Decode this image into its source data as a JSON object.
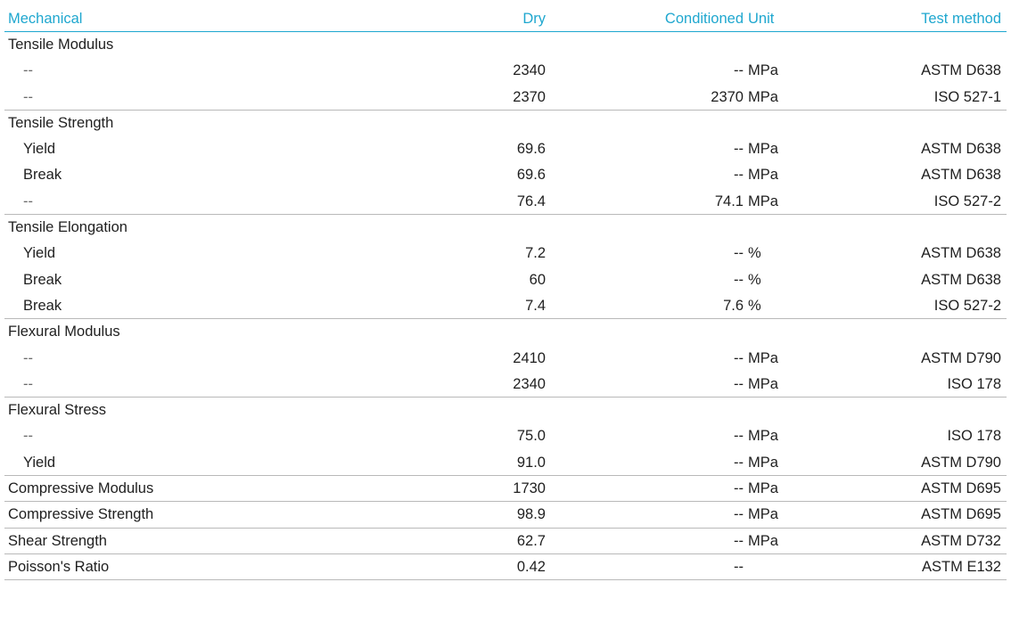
{
  "header": {
    "section": "Mechanical",
    "dry": "Dry",
    "conditioned": "Conditioned",
    "unit": "Unit",
    "test_method": "Test method"
  },
  "rows": [
    {
      "kind": "group",
      "property": "Tensile Modulus",
      "dry": "",
      "cond": "",
      "unit": "",
      "method": "",
      "divider": false
    },
    {
      "kind": "sub",
      "property": "--",
      "dry": "2340",
      "cond": "--",
      "unit": "MPa",
      "method": "ASTM D638",
      "divider": false
    },
    {
      "kind": "sub",
      "property": "--",
      "dry": "2370",
      "cond": "2370",
      "unit": "MPa",
      "method": "ISO 527-1",
      "divider": true
    },
    {
      "kind": "group",
      "property": "Tensile Strength",
      "dry": "",
      "cond": "",
      "unit": "",
      "method": "",
      "divider": false
    },
    {
      "kind": "sub",
      "property": "Yield",
      "dry": "69.6",
      "cond": "--",
      "unit": "MPa",
      "method": "ASTM D638",
      "divider": false
    },
    {
      "kind": "sub",
      "property": "Break",
      "dry": "69.6",
      "cond": "--",
      "unit": "MPa",
      "method": "ASTM D638",
      "divider": false
    },
    {
      "kind": "sub",
      "property": "--",
      "dry": "76.4",
      "cond": "74.1",
      "unit": "MPa",
      "method": "ISO 527-2",
      "divider": true
    },
    {
      "kind": "group",
      "property": "Tensile Elongation",
      "dry": "",
      "cond": "",
      "unit": "",
      "method": "",
      "divider": false
    },
    {
      "kind": "sub",
      "property": "Yield",
      "dry": "7.2",
      "cond": "--",
      "unit": "%",
      "method": "ASTM D638",
      "divider": false
    },
    {
      "kind": "sub",
      "property": "Break",
      "dry": "60",
      "cond": "--",
      "unit": "%",
      "method": "ASTM D638",
      "divider": false
    },
    {
      "kind": "sub",
      "property": "Break",
      "dry": "7.4",
      "cond": "7.6",
      "unit": "%",
      "method": "ISO 527-2",
      "divider": true
    },
    {
      "kind": "group",
      "property": "Flexural Modulus",
      "dry": "",
      "cond": "",
      "unit": "",
      "method": "",
      "divider": false
    },
    {
      "kind": "sub",
      "property": "--",
      "dry": "2410",
      "cond": "--",
      "unit": "MPa",
      "method": "ASTM D790",
      "divider": false
    },
    {
      "kind": "sub",
      "property": "--",
      "dry": "2340",
      "cond": "--",
      "unit": "MPa",
      "method": "ISO 178",
      "divider": true
    },
    {
      "kind": "group",
      "property": "Flexural Stress",
      "dry": "",
      "cond": "",
      "unit": "",
      "method": "",
      "divider": false
    },
    {
      "kind": "sub",
      "property": "--",
      "dry": "75.0",
      "cond": "--",
      "unit": "MPa",
      "method": "ISO 178",
      "divider": false
    },
    {
      "kind": "sub",
      "property": "Yield",
      "dry": "91.0",
      "cond": "--",
      "unit": "MPa",
      "method": "ASTM D790",
      "divider": true
    },
    {
      "kind": "single",
      "property": "Compressive Modulus",
      "dry": "1730",
      "cond": "--",
      "unit": "MPa",
      "method": "ASTM D695",
      "divider": true
    },
    {
      "kind": "single",
      "property": "Compressive Strength",
      "dry": "98.9",
      "cond": "--",
      "unit": "MPa",
      "method": "ASTM D695",
      "divider": true
    },
    {
      "kind": "single",
      "property": "Shear Strength",
      "dry": "62.7",
      "cond": "--",
      "unit": "MPa",
      "method": "ASTM D732",
      "divider": true
    },
    {
      "kind": "single",
      "property": "Poisson's Ratio",
      "dry": "0.42",
      "cond": "--",
      "unit": "",
      "method": "ASTM E132",
      "divider": true
    }
  ],
  "colors": {
    "accent": "#1fa7cf",
    "text": "#1f1f1f",
    "muted": "#6b6b6b",
    "divider": "#b9b9b9"
  }
}
